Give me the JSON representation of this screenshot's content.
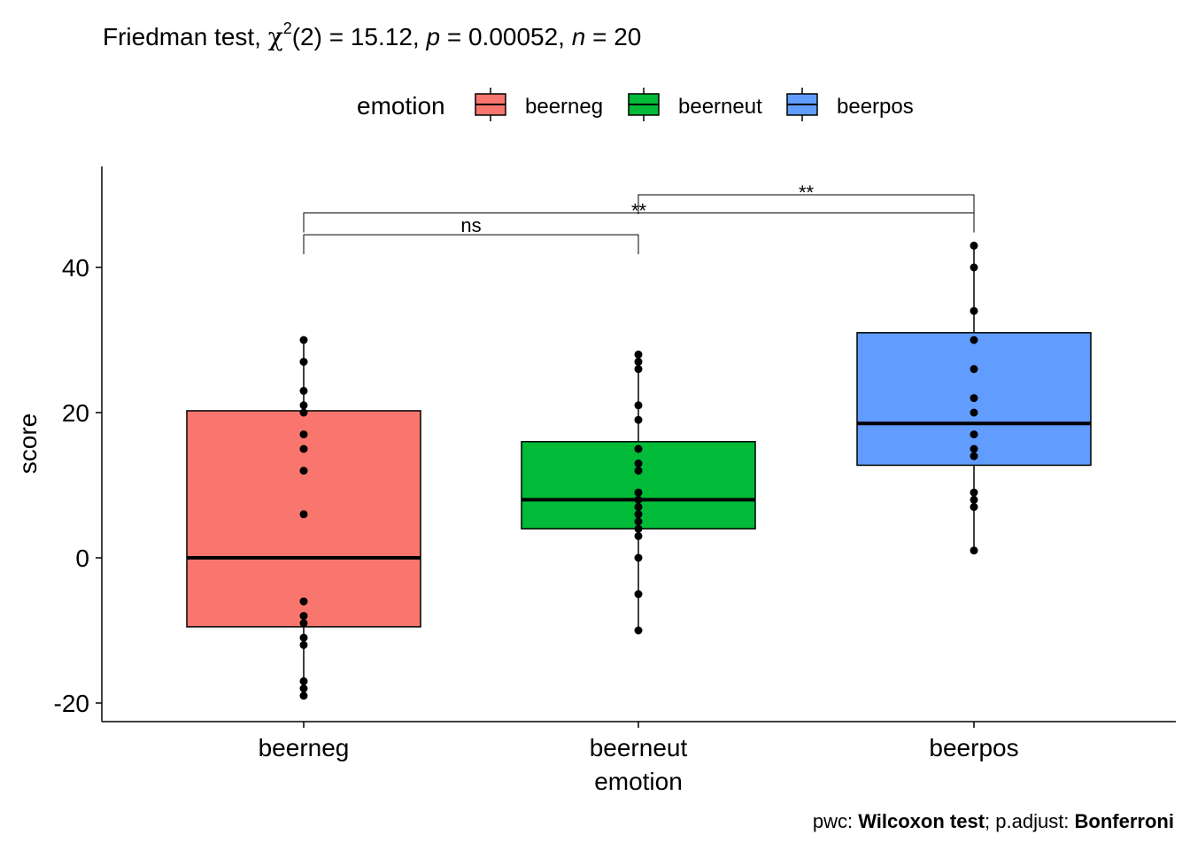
{
  "chart_data": {
    "type": "box",
    "title": {
      "prefix": "Friedman test, ",
      "chi": "χ",
      "sup": "2",
      "df_part": "(2) = 15.12, ",
      "p_sym": "p",
      "p_val": " = 0.00052, ",
      "n_sym": "n",
      "n_val": " = 20"
    },
    "legend": {
      "title": "emotion",
      "position": "top",
      "entries": [
        {
          "label": "beerneg",
          "color": "#F8766D"
        },
        {
          "label": "beerneut",
          "color": "#00BA38"
        },
        {
          "label": "beerpos",
          "color": "#619CFF"
        }
      ]
    },
    "xlabel": "emotion",
    "ylabel": "score",
    "categories": [
      "beerneg",
      "beerneut",
      "beerpos"
    ],
    "ylim": [
      -22,
      53
    ],
    "yticks": [
      -20,
      0,
      20,
      40
    ],
    "ytick_labels": [
      "-20",
      "0",
      "20",
      "40"
    ],
    "grid": false,
    "series": [
      {
        "name": "beerneg",
        "color": "#F8766D",
        "q1": -9.5,
        "median": 0,
        "q3": 20.25,
        "whisker_low": -19,
        "whisker_high": 30,
        "points": [
          30,
          27,
          23,
          21,
          20,
          17,
          15,
          12,
          6,
          -6,
          -8,
          -9,
          -11,
          -12,
          -17,
          -18,
          -19
        ]
      },
      {
        "name": "beerneut",
        "color": "#00BA38",
        "q1": 4,
        "median": 8,
        "q3": 16,
        "whisker_low": -10,
        "whisker_high": 28,
        "points": [
          28,
          27,
          26,
          21,
          19,
          15,
          13,
          12,
          9,
          8,
          7,
          6,
          5,
          4,
          3,
          0,
          -5,
          -10
        ]
      },
      {
        "name": "beerpos",
        "color": "#619CFF",
        "q1": 12.75,
        "median": 18.5,
        "q3": 31,
        "whisker_low": 1,
        "whisker_high": 43,
        "points": [
          43,
          40,
          34,
          30,
          26,
          22,
          20,
          17,
          15,
          14,
          9,
          8,
          7,
          1
        ]
      }
    ],
    "comparisons": [
      {
        "group1": "beerneg",
        "group2": "beerneut",
        "label": "ns",
        "y": 44.5
      },
      {
        "group1": "beerneg",
        "group2": "beerpos",
        "label": "**",
        "y": 47.5
      },
      {
        "group1": "beerneut",
        "group2": "beerpos",
        "label": "**",
        "y": 50
      }
    ],
    "caption": {
      "pwc_label": "pwc: ",
      "pwc_value": "Wilcoxon test",
      "sep": "; p.adjust: ",
      "adjust_value": "Bonferroni"
    }
  }
}
